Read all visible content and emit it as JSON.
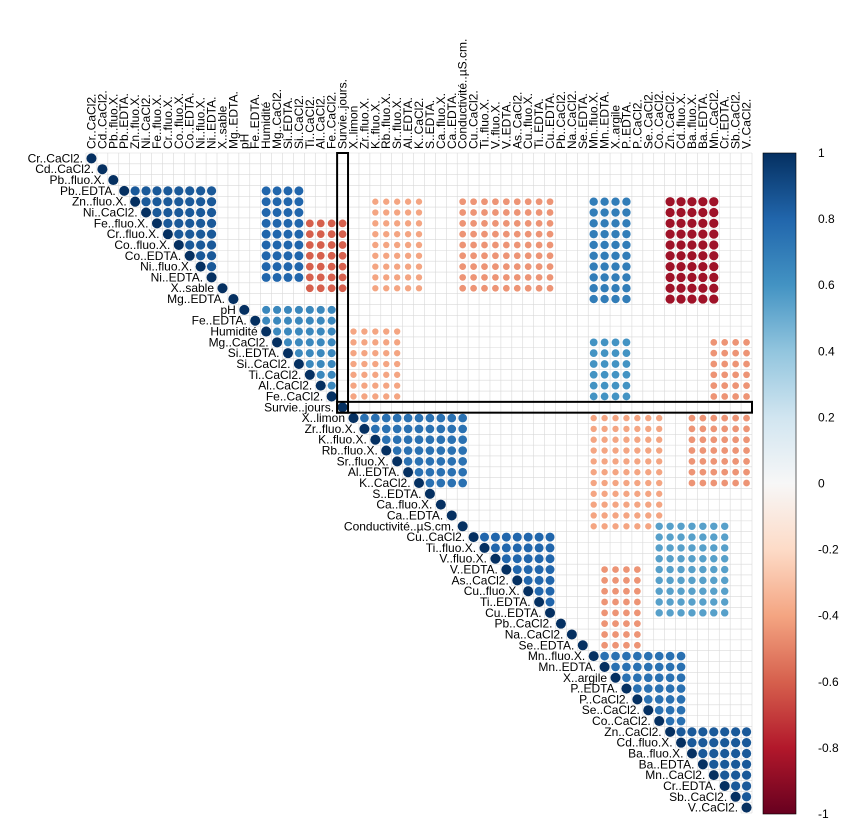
{
  "chart_data": {
    "type": "heatmap",
    "subtype": "correlation-upper-triangle",
    "mark_shape": "circle",
    "variables": [
      "Cr..CaCl2.",
      "Cd..CaCl2.",
      "Pb..fluo.X.",
      "Pb..EDTA.",
      "Zn..fluo.X.",
      "Ni..CaCl2.",
      "Fe..fluo.X.",
      "Cr..fluo.X.",
      "Co..fluo.X.",
      "Co..EDTA.",
      "Ni..fluo.X.",
      "Ni..EDTA.",
      "X..sable",
      "Mg..EDTA.",
      "pH",
      "Fe..EDTA.",
      "Humidité",
      "Mg..CaCl2.",
      "Si..EDTA.",
      "Si..CaCl2.",
      "Ti..CaCl2.",
      "Al..CaCl2.",
      "Fe..CaCl2.",
      "Survie..jours.",
      "X..limon",
      "Zr..fluo.X.",
      "K..fluo.X.",
      "Rb..fluo.X.",
      "Sr..fluo.X.",
      "Al..EDTA.",
      "K..CaCl2.",
      "S..EDTA.",
      "Ca..fluo.X.",
      "Ca..EDTA.",
      "Conductivité..µS.cm.",
      "Cu..CaCl2.",
      "Ti..fluo.X.",
      "V..fluo.X.",
      "V..EDTA.",
      "As..CaCl2.",
      "Cu..fluo.X.",
      "Ti..EDTA.",
      "Cu..EDTA.",
      "Pb..CaCl2.",
      "Na..CaCl2.",
      "Se..EDTA.",
      "Mn..fluo.X.",
      "Mn..EDTA.",
      "X..argile",
      "P..EDTA.",
      "P..CaCl2.",
      "Se..CaCl2.",
      "Co..CaCl2.",
      "Zn..CaCl2.",
      "Cd..fluo.X.",
      "Ba..fluo.X.",
      "Ba..EDTA.",
      "Mn..CaCl2.",
      "Cr..EDTA.",
      "Sb..CaCl2.",
      "V..CaCl2."
    ],
    "colorbar": {
      "min": -1,
      "max": 1,
      "ticks": [
        "1",
        "0.8",
        "0.6",
        "0.4",
        "0.2",
        "0",
        "-0.2",
        "-0.4",
        "-0.6",
        "-0.8",
        "-1"
      ],
      "colors": {
        "neg1": "#67001f",
        "neg06": "#d6604d",
        "neg02": "#fddbc7",
        "zero": "#f7f7f7",
        "pos02": "#d1e5f0",
        "pos06": "#4393c3",
        "pos1": "#053061"
      }
    },
    "highlight": {
      "variable": "Survie..jours."
    },
    "grid": true,
    "legend": "right",
    "diagonal": 1,
    "blocks": [
      {
        "rows": [
          3,
          11
        ],
        "cols": [
          3,
          11
        ],
        "r": 0.85
      },
      {
        "rows": [
          3,
          11
        ],
        "cols": [
          16,
          19
        ],
        "r": 0.8
      },
      {
        "rows": [
          6,
          12
        ],
        "cols": [
          20,
          23
        ],
        "r": -0.6
      },
      {
        "rows": [
          14,
          22
        ],
        "cols": [
          16,
          22
        ],
        "r": 0.65
      },
      {
        "rows": [
          24,
          30
        ],
        "cols": [
          24,
          34
        ],
        "r": 0.75
      },
      {
        "rows": [
          35,
          41
        ],
        "cols": [
          35,
          42
        ],
        "r": 0.8
      },
      {
        "rows": [
          46,
          52
        ],
        "cols": [
          46,
          54
        ],
        "r": 0.75
      },
      {
        "rows": [
          53,
          60
        ],
        "cols": [
          53,
          60
        ],
        "r": 0.85
      },
      {
        "rows": [
          4,
          12
        ],
        "cols": [
          34,
          42
        ],
        "r": -0.45
      },
      {
        "rows": [
          4,
          13
        ],
        "cols": [
          53,
          57
        ],
        "r": -0.85
      },
      {
        "rows": [
          4,
          13
        ],
        "cols": [
          46,
          49
        ],
        "r": 0.7
      },
      {
        "rows": [
          4,
          12
        ],
        "cols": [
          26,
          30
        ],
        "r": -0.4
      },
      {
        "rows": [
          17,
          22
        ],
        "cols": [
          46,
          49
        ],
        "r": 0.6
      },
      {
        "rows": [
          16,
          22
        ],
        "cols": [
          24,
          28
        ],
        "r": -0.4
      },
      {
        "rows": [
          24,
          34
        ],
        "cols": [
          46,
          52
        ],
        "r": -0.4
      },
      {
        "rows": [
          24,
          30
        ],
        "cols": [
          55,
          60
        ],
        "r": -0.45
      },
      {
        "rows": [
          34,
          42
        ],
        "cols": [
          52,
          58
        ],
        "r": 0.55
      },
      {
        "rows": [
          17,
          22
        ],
        "cols": [
          57,
          60
        ],
        "r": -0.45
      },
      {
        "rows": [
          38,
          45
        ],
        "cols": [
          47,
          50
        ],
        "r": -0.45
      }
    ]
  }
}
